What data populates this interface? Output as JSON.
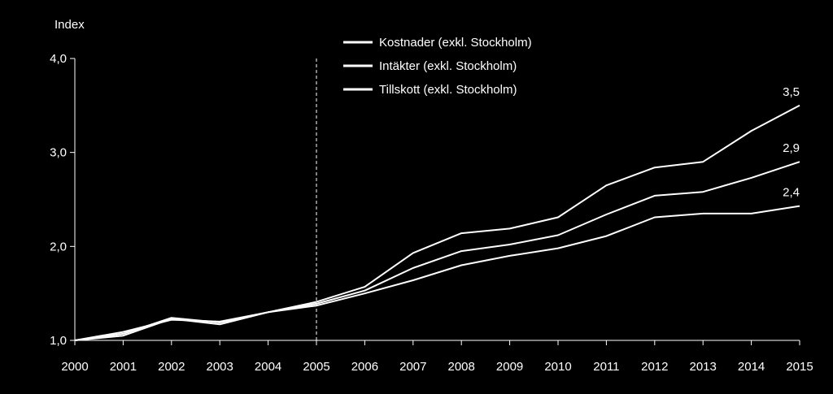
{
  "chart_data": {
    "type": "line",
    "ylabel": "Index",
    "ylim": [
      1.0,
      4.0
    ],
    "yticks": [
      "1,0",
      "2,0",
      "3,0",
      "4,0"
    ],
    "yticks_values": [
      1.0,
      2.0,
      3.0,
      4.0
    ],
    "x": [
      "2000",
      "2001",
      "2002",
      "2003",
      "2004",
      "2005",
      "2006",
      "2007",
      "2008",
      "2009",
      "2010",
      "2011",
      "2012",
      "2013",
      "2014",
      "2015"
    ],
    "reference_line_x": "2005",
    "legend_position": "top-center",
    "series": [
      {
        "name": "Kostnader (exkl. Stockholm)",
        "values": [
          1.0,
          1.07,
          1.24,
          1.19,
          1.3,
          1.41,
          1.57,
          1.93,
          2.14,
          2.19,
          2.31,
          2.65,
          2.84,
          2.9,
          3.23,
          3.5
        ],
        "end_label": "3,5"
      },
      {
        "name": "Intäkter (exkl. Stockholm)",
        "values": [
          1.0,
          1.05,
          1.23,
          1.17,
          1.3,
          1.39,
          1.53,
          1.77,
          1.95,
          2.02,
          2.12,
          2.34,
          2.54,
          2.58,
          2.73,
          2.9
        ],
        "end_label": "2,9"
      },
      {
        "name": "Tillskott (exkl. Stockholm)",
        "values": [
          1.0,
          1.09,
          1.22,
          1.2,
          1.3,
          1.37,
          1.5,
          1.64,
          1.8,
          1.9,
          1.98,
          2.11,
          2.31,
          2.35,
          2.35,
          2.43
        ],
        "end_label": "2,4"
      }
    ],
    "grid": false,
    "colors": {
      "background": "#000000",
      "line": "#ffffff",
      "axis": "#ffffff"
    }
  }
}
